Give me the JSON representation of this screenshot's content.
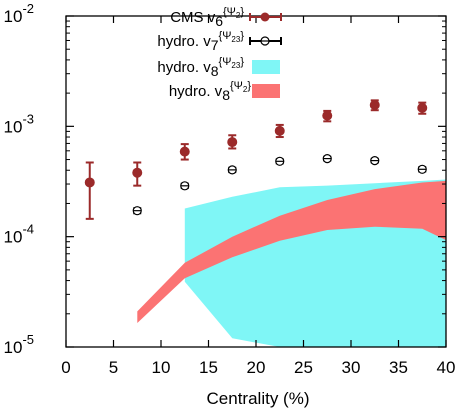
{
  "chart_data": {
    "type": "scatter",
    "xlabel": "Centrality (%)",
    "ylabel": "",
    "xlim": [
      0,
      40
    ],
    "ylim": [
      1e-05,
      0.01
    ],
    "y_scale": "log",
    "x_ticks": [
      "0",
      "5",
      "10",
      "15",
      "20",
      "25",
      "30",
      "35",
      "40"
    ],
    "y_ticks": [
      {
        "base": "10",
        "exp": "-2",
        "value": 0.01
      },
      {
        "base": "10",
        "exp": "-3",
        "value": 0.001
      },
      {
        "base": "10",
        "exp": "-4",
        "value": 0.0001
      },
      {
        "base": "10",
        "exp": "-5",
        "value": 1e-05
      }
    ],
    "legend_position": "top-right",
    "series": [
      {
        "name_main": "CMS v",
        "name_sub": "6",
        "name_sup": "{Ψ",
        "name_sup_sub": "2",
        "name_sup_end": "}",
        "kind": "points-errorbars",
        "marker": "filled-circle",
        "color": "#9b2a2a",
        "x": [
          2.5,
          7.5,
          12.5,
          17.5,
          22.5,
          27.5,
          32.5,
          37.5
        ],
        "y": [
          0.00031,
          0.00038,
          0.00059,
          0.00072,
          0.00091,
          0.00125,
          0.00156,
          0.00147
        ],
        "y_low": [
          0.000145,
          0.00029,
          0.0005,
          0.00063,
          0.0008,
          0.00111,
          0.0014,
          0.0013
        ],
        "y_high": [
          0.00047,
          0.00047,
          0.00069,
          0.00083,
          0.00103,
          0.00138,
          0.00172,
          0.00164
        ]
      },
      {
        "name_main": "hydro. v",
        "name_sub": "7",
        "name_sup": "{Ψ",
        "name_sup_sub": "23",
        "name_sup_end": "}",
        "kind": "points-errorbars",
        "marker": "open-circle",
        "color": "#000000",
        "x": [
          7.5,
          12.5,
          17.5,
          22.5,
          27.5,
          32.5,
          37.5
        ],
        "y": [
          0.000172,
          0.000289,
          0.000403,
          0.000482,
          0.00051,
          0.000489,
          0.000408
        ],
        "y_low": [
          0.000163,
          0.000276,
          0.000385,
          0.000462,
          0.00049,
          0.00047,
          0.00039
        ],
        "y_high": [
          0.000181,
          0.000302,
          0.000421,
          0.000502,
          0.00053,
          0.000508,
          0.000426
        ]
      },
      {
        "name_main": "hydro. v",
        "name_sub": "8",
        "name_sup": "{Ψ",
        "name_sup_sub": "23",
        "name_sup_end": "}",
        "kind": "band",
        "color": "#7ff6f6",
        "x": [
          12.5,
          17.5,
          22.5,
          27.5,
          32.5,
          37.5,
          40
        ],
        "upper": [
          0.00018,
          0.00023,
          0.00028,
          0.00029,
          0.000305,
          0.00032,
          0.00033
        ],
        "lower": [
          3.9e-05,
          9.9e-06,
          9.9e-06,
          9.9e-06,
          9.9e-06,
          9.9e-06,
          9.9e-06
        ],
        "lower_plot": [
          3.9e-05,
          1.2e-05,
          1e-05,
          1e-05,
          1e-05,
          1e-05,
          1e-05
        ]
      },
      {
        "name_main": "hydro. v",
        "name_sub": "8",
        "name_sup": "{Ψ",
        "name_sup_sub": "2",
        "name_sup_end": "}",
        "kind": "band",
        "color": "#fb7373",
        "x": [
          7.5,
          12.5,
          17.5,
          22.5,
          27.5,
          32.5,
          37.5,
          40
        ],
        "upper": [
          2.1e-05,
          5.8e-05,
          0.0001,
          0.000155,
          0.000215,
          0.00027,
          0.00031,
          0.00032
        ],
        "lower": [
          1.65e-05,
          4.2e-05,
          6.5e-05,
          9.2e-05,
          0.000115,
          0.000123,
          0.000118,
          9.3e-05
        ]
      }
    ]
  }
}
